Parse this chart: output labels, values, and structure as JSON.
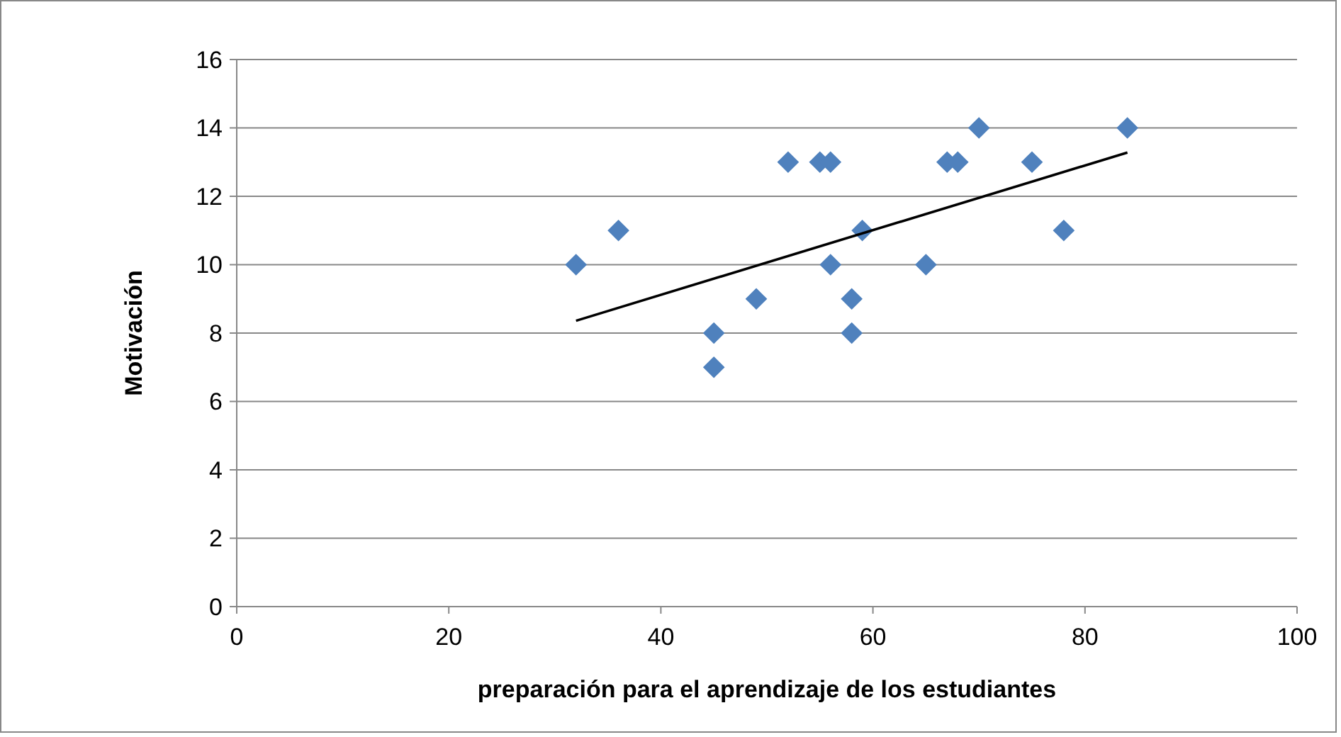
{
  "chart_data": {
    "type": "scatter",
    "xlabel": "preparación para el aprendizaje de los estudiantes",
    "ylabel": "Motivación",
    "xlim": [
      0,
      100
    ],
    "xticks": [
      0,
      20,
      40,
      60,
      80,
      100
    ],
    "ylim": [
      0,
      16
    ],
    "yticks": [
      0,
      2,
      4,
      6,
      8,
      10,
      12,
      14,
      16
    ],
    "grid": "y",
    "marker": "diamond",
    "series": [
      {
        "color": "#4f81bd",
        "x": [
          32,
          36,
          45,
          45,
          49,
          52,
          55,
          56,
          56,
          58,
          58,
          59,
          65,
          67,
          68,
          70,
          75,
          78,
          84
        ],
        "values": [
          10,
          11,
          8,
          7,
          9,
          13,
          13,
          13,
          10,
          9,
          8,
          11,
          10,
          13,
          13,
          14,
          13,
          11,
          14
        ]
      },
      {
        "type": "line",
        "color": "#000000",
        "marker": "none",
        "x": [
          32,
          84
        ],
        "values": [
          8.36,
          13.28
        ]
      }
    ]
  }
}
